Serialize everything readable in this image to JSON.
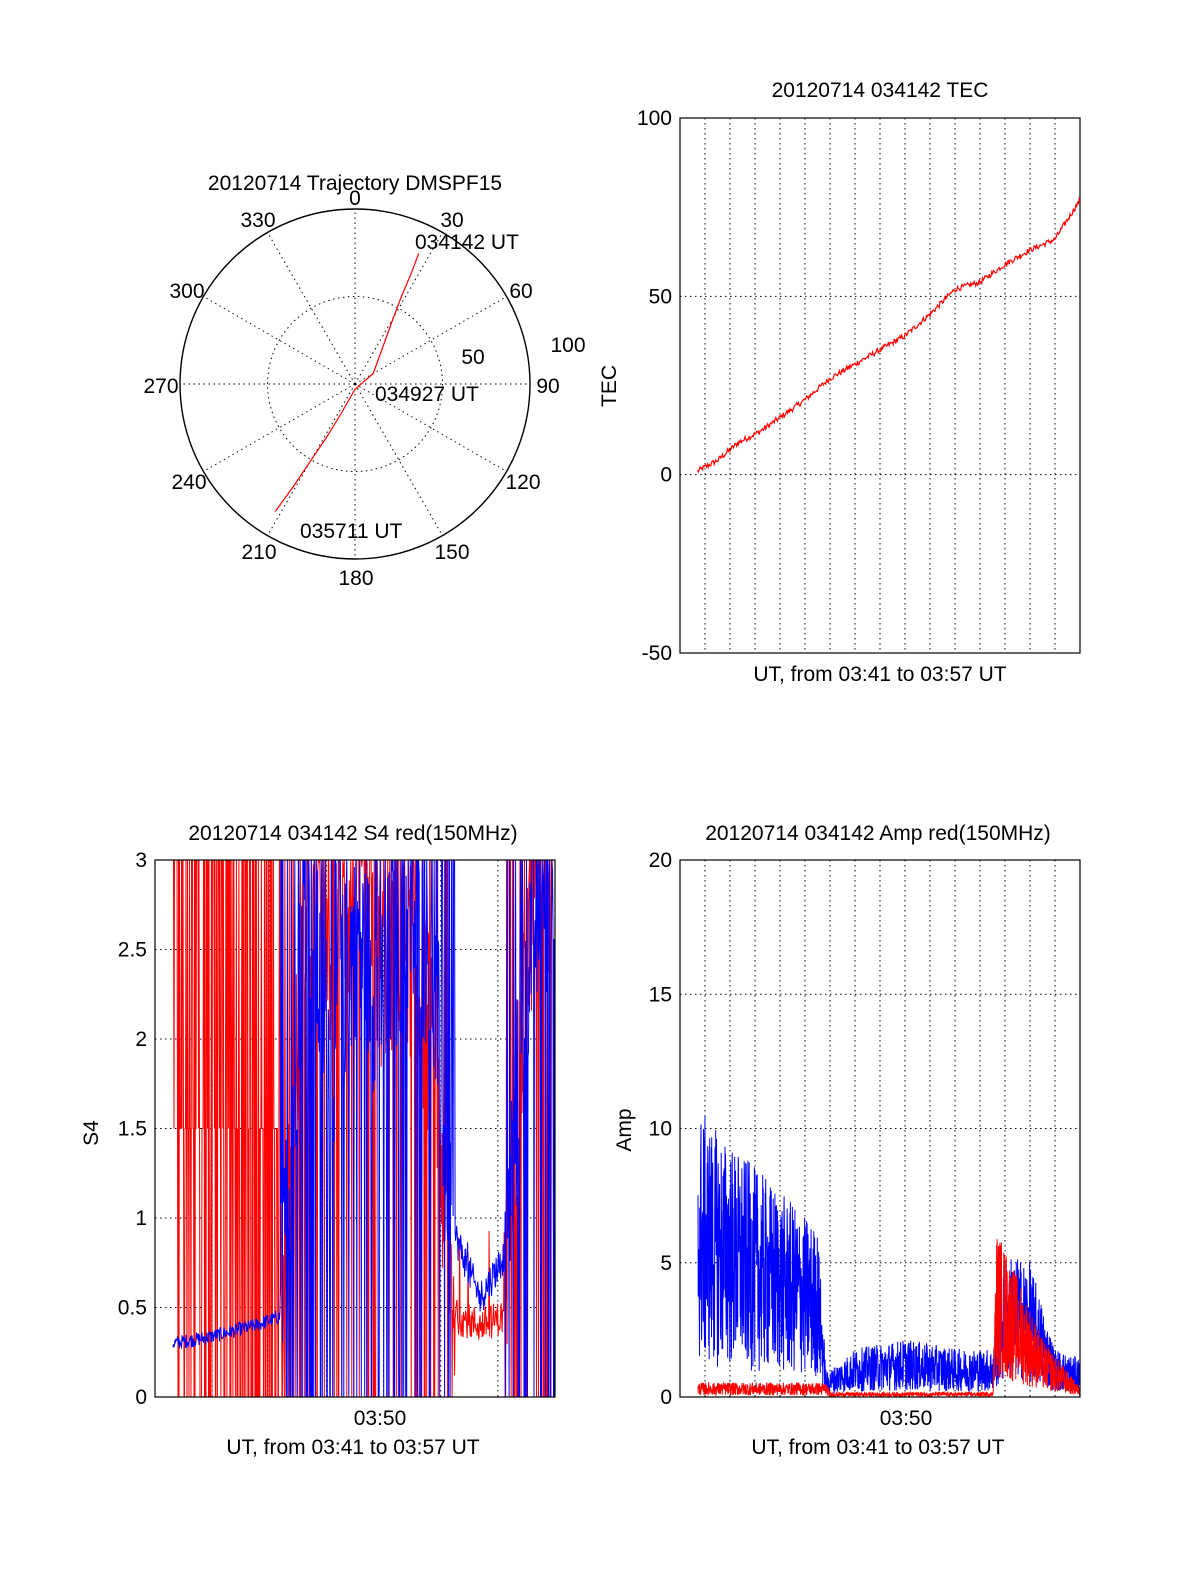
{
  "chart_data": [
    {
      "type": "polar",
      "title": "20120714 Trajectory DMSPF15",
      "angle_ticks": [
        "0",
        "30",
        "60",
        "90",
        "120",
        "150",
        "180",
        "210",
        "240",
        "270",
        "300",
        "330"
      ],
      "radius_ticks": [
        "50",
        "100"
      ],
      "rlim": [
        0,
        100
      ],
      "grid": true,
      "series": [
        {
          "color": "#ff0000",
          "points": [
            {
              "azimuth": 26,
              "radius": 83
            },
            {
              "azimuth": 27,
              "radius": 70
            },
            {
              "azimuth": 28,
              "radius": 56
            },
            {
              "azimuth": 31,
              "radius": 40
            },
            {
              "azimuth": 38,
              "radius": 25
            },
            {
              "azimuth": 60,
              "radius": 12
            },
            {
              "azimuth": 180,
              "radius": 3
            },
            {
              "azimuth": 205,
              "radius": 18
            },
            {
              "azimuth": 208,
              "radius": 34
            },
            {
              "azimuth": 210,
              "radius": 50
            },
            {
              "azimuth": 211,
              "radius": 68
            },
            {
              "azimuth": 212,
              "radius": 86
            }
          ]
        }
      ],
      "annotations": [
        "034142 UT",
        "034927 UT",
        "035711 UT"
      ]
    },
    {
      "type": "line",
      "title": "20120714 034142 TEC",
      "xlabel": "UT, from 03:41 to 03:57 UT",
      "ylabel": "TEC",
      "xlim": [
        "03:41",
        "03:57"
      ],
      "ylim": [
        -50,
        100
      ],
      "yticks": [
        "100",
        "50",
        "0",
        "-50"
      ],
      "grid": true,
      "series": [
        {
          "color": "#ff0000",
          "x": [
            "03:41:42",
            "03:42:30",
            "03:43:20",
            "03:44:10",
            "03:45:00",
            "03:46:00",
            "03:47:00",
            "03:48:00",
            "03:49:00",
            "03:50:00",
            "03:51:00",
            "03:52:00",
            "03:53:00",
            "03:54:00",
            "03:55:00",
            "03:56:00",
            "03:57:00"
          ],
          "y": [
            1,
            4,
            9,
            12,
            16,
            21,
            27,
            31,
            35,
            39,
            45,
            52,
            54,
            59,
            63,
            66,
            77
          ]
        }
      ]
    },
    {
      "type": "line",
      "title": "20120714 034142 S4 red(150MHz)",
      "xlabel": "UT, from 03:41 to 03:57 UT",
      "ylabel": "S4",
      "xticks": [
        "03:50"
      ],
      "ylim": [
        0,
        3
      ],
      "yticks": [
        "3",
        "2.5",
        "2",
        "1.5",
        "1",
        "0.5",
        "0"
      ],
      "grid": true,
      "series": [
        {
          "color": "#0000ff",
          "x": [
            "03:41:42",
            "03:43:00",
            "03:45:00",
            "03:46:00",
            "03:47:00",
            "03:48:00",
            "03:49:00",
            "03:50:00",
            "03:51:00",
            "03:52:00",
            "03:53:00",
            "03:54:00",
            "03:55:00",
            "03:56:00",
            "03:57:00"
          ],
          "y": [
            0.3,
            0.33,
            0.4,
            0.45,
            2.8,
            1.9,
            2.6,
            2.2,
            2.7,
            2.5,
            0.9,
            0.55,
            0.8,
            2.6,
            2.9
          ]
        },
        {
          "color": "#ff0000",
          "x": [
            "03:41:42",
            "03:43:00",
            "03:45:00",
            "03:46:00",
            "03:47:00",
            "03:48:00",
            "03:49:00",
            "03:50:00",
            "03:51:00",
            "03:52:00",
            "03:53:00",
            "03:54:00",
            "03:55:00",
            "03:56:00",
            "03:57:00"
          ],
          "y": [
            3,
            2.8,
            2.9,
            0.4,
            2.7,
            2.5,
            2.8,
            2.4,
            2.6,
            2.0,
            0.45,
            0.4,
            0.45,
            2.7,
            3
          ]
        }
      ]
    },
    {
      "type": "line",
      "title": "20120714 034142 Amp red(150MHz)",
      "xlabel": "UT, from 03:41 to 03:57 UT",
      "ylabel": "Amp",
      "xticks": [
        "03:50"
      ],
      "ylim": [
        0,
        20
      ],
      "yticks": [
        "20",
        "15",
        "10",
        "5",
        "0"
      ],
      "grid": true,
      "series": [
        {
          "color": "#0000ff",
          "x": [
            "03:41:42",
            "03:42:30",
            "03:43:30",
            "03:44:30",
            "03:45:30",
            "03:46:30",
            "03:46:50",
            "03:48:00",
            "03:50:00",
            "03:52:00",
            "03:53:30",
            "03:54:00",
            "03:55:00",
            "03:56:00",
            "03:57:00"
          ],
          "y": [
            6,
            5.5,
            5,
            4.5,
            4,
            3.5,
            0.5,
            1.0,
            1.2,
            1.0,
            1.0,
            3.0,
            2.8,
            1.0,
            0.8
          ]
        },
        {
          "color": "#ff0000",
          "x": [
            "03:41:42",
            "03:46:50",
            "03:47:00",
            "03:53:30",
            "03:53:40",
            "03:54:30",
            "03:55:30",
            "03:57:00"
          ],
          "y": [
            0.3,
            0.3,
            0.1,
            0.1,
            3.5,
            2.5,
            1.2,
            0.2
          ]
        }
      ]
    }
  ]
}
